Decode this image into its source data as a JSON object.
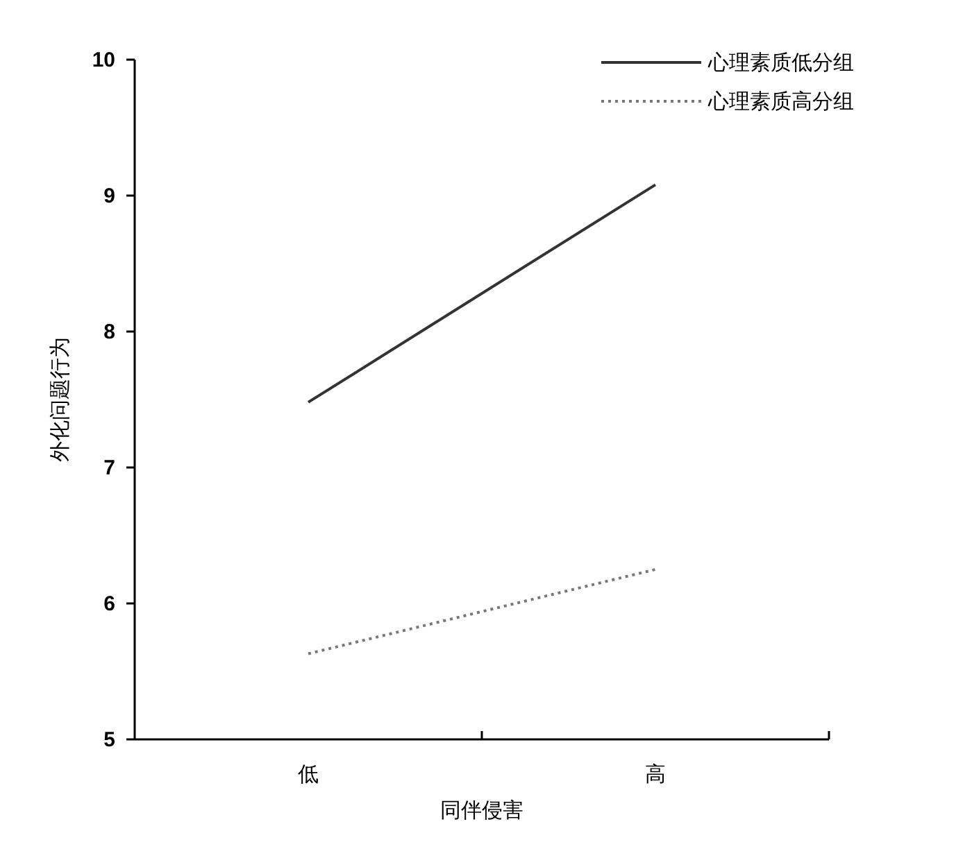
{
  "chart_data": {
    "type": "line",
    "xlabel": "同伴侵害",
    "ylabel": "外化问题行为",
    "categories": [
      "低",
      "高"
    ],
    "ylim": [
      5,
      10
    ],
    "yticks": [
      5,
      6,
      7,
      8,
      9,
      10
    ],
    "grid": false,
    "legend": "top right",
    "series": [
      {
        "name": "心理素质低分组",
        "color": "#333333",
        "line_style": "solid",
        "values": [
          7.48,
          9.08
        ]
      },
      {
        "name": "心理素质高分组",
        "color": "#777777",
        "line_style": "dotted",
        "values": [
          5.63,
          6.25
        ]
      }
    ]
  }
}
